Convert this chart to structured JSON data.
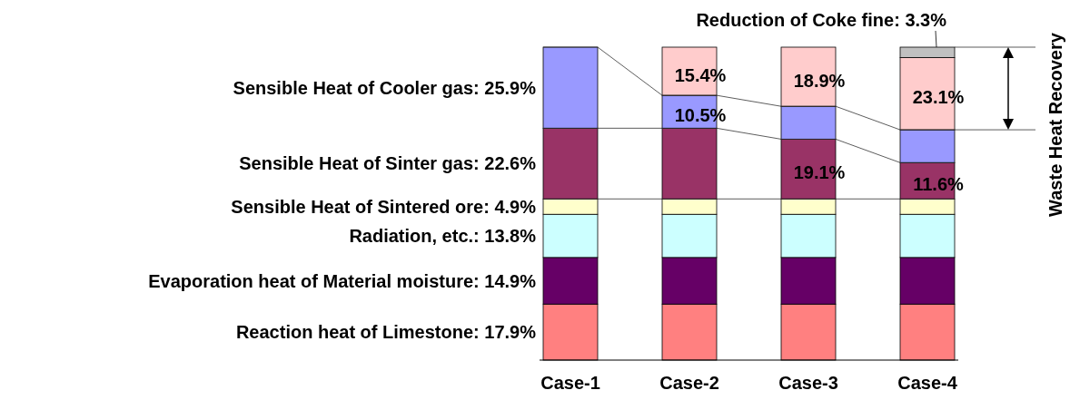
{
  "chart_data": {
    "type": "bar",
    "stacked": true,
    "categories": [
      "Case-1",
      "Case-2",
      "Case-3",
      "Case-4"
    ],
    "series": [
      {
        "color": "#ff8080",
        "values": [
          17.9,
          17.9,
          17.9,
          17.9
        ]
      },
      {
        "color": "#660066",
        "values": [
          14.9,
          14.9,
          14.9,
          14.9
        ]
      },
      {
        "color": "#ccffff",
        "values": [
          13.8,
          13.8,
          13.8,
          13.8
        ]
      },
      {
        "color": "#ffffcc",
        "values": [
          4.9,
          4.9,
          4.9,
          4.9
        ]
      },
      {
        "color": "#993366",
        "values": [
          22.6,
          22.6,
          19.1,
          11.6
        ],
        "value_labels": [
          null,
          null,
          "19.1%",
          "11.6%"
        ]
      },
      {
        "color": "#9999ff",
        "values": [
          25.9,
          10.5,
          10.5,
          10.5
        ],
        "value_labels": [
          null,
          "10.5%",
          null,
          null
        ]
      },
      {
        "name": "Waste Heat Recovery",
        "color": "#ffcccc",
        "values": [
          null,
          15.4,
          18.9,
          23.1
        ],
        "value_labels": [
          null,
          "15.4%",
          "18.9%",
          "23.1%"
        ]
      },
      {
        "name": "Reduction of Coke fine:",
        "color": "#c0c0c0",
        "values": [
          null,
          null,
          null,
          3.3
        ],
        "value_labels": [
          null,
          null,
          null,
          "3.3%"
        ]
      }
    ],
    "annotations": [
      "Reaction heat of Limestone:  17.9%",
      "Evaporation heat of Material moisture:  14.9%",
      "Radiation, etc.:  13.8%",
      "Sensible Heat of Sintered ore:  4.9%",
      "Sensible Heat of Sinter gas:  22.6%",
      "Sensible Heat of Cooler gas:  25.9%"
    ]
  }
}
